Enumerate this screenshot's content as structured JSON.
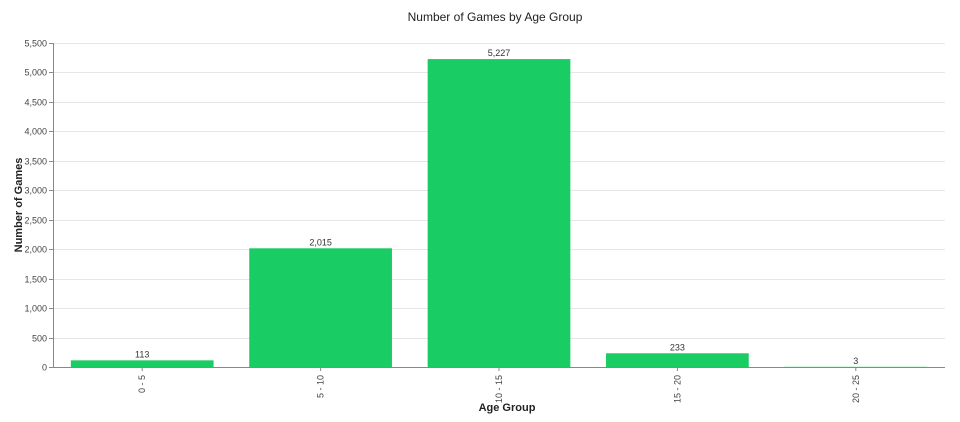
{
  "chart_data": {
    "type": "bar",
    "title": "Number of Games by Age Group",
    "xlabel": "Age Group",
    "ylabel": "Number of Games",
    "categories": [
      "0 - 5",
      "5 - 10",
      "10 - 15",
      "15 - 20",
      "20 - 25"
    ],
    "values": [
      113,
      2015,
      5227,
      233,
      3
    ],
    "data_labels": [
      "113",
      "2,015",
      "5,227",
      "233",
      "3"
    ],
    "ylim": [
      0,
      5500
    ],
    "yticks": [
      0,
      500,
      1000,
      1500,
      2000,
      2500,
      3000,
      3500,
      4000,
      4500,
      5000,
      5500
    ],
    "ytick_labels": [
      "0",
      "500",
      "1,000",
      "1,500",
      "2,000",
      "2,500",
      "3,000",
      "3,500",
      "4,000",
      "4,500",
      "5,000",
      "5,500"
    ],
    "grid": true,
    "legend": false,
    "bar_color": "#19cc63"
  }
}
